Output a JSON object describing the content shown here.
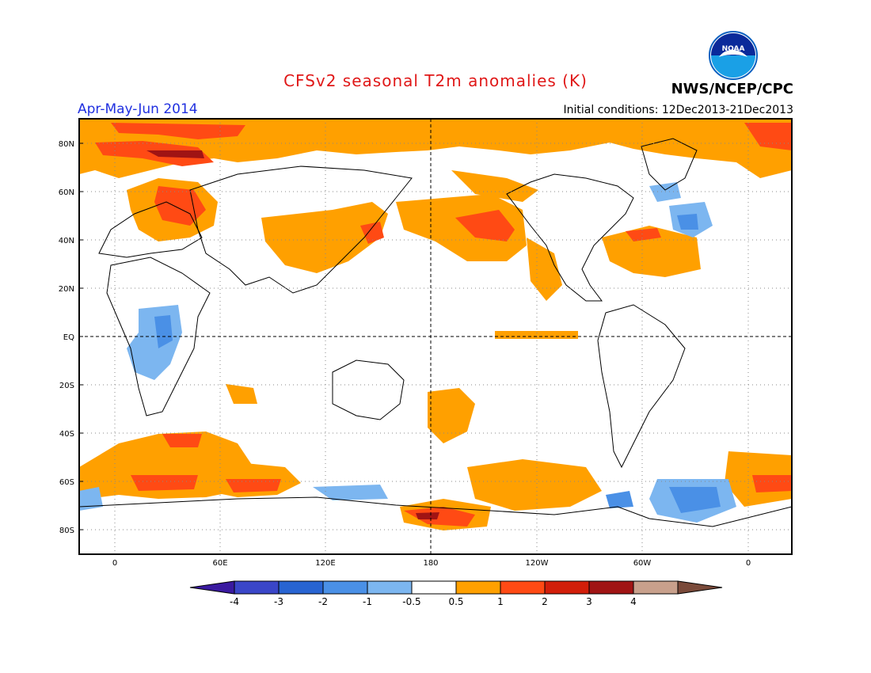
{
  "header": {
    "title": "CFSv2 seasonal T2m anomalies (K)",
    "period": "Apr-May-Jun 2014",
    "initial_conditions": "Initial conditions: 12Dec2013-21Dec2013",
    "agency": "NWS/NCEP/CPC",
    "logo_text": "NOAA"
  },
  "axes": {
    "lat_labels": [
      "80N",
      "60N",
      "40N",
      "20N",
      "EQ",
      "20S",
      "40S",
      "60S",
      "80S"
    ],
    "lon_labels": [
      "0",
      "60E",
      "120E",
      "180",
      "120W",
      "60W",
      "0"
    ]
  },
  "colorbar": {
    "levels": [
      "-4",
      "-3",
      "-2",
      "-1",
      "-0.5",
      "0.5",
      "1",
      "2",
      "3",
      "4"
    ],
    "colors": [
      "#3a1aa0",
      "#3a46c8",
      "#2864d2",
      "#4a90e6",
      "#7cb6f0",
      "#ffffff",
      "#ffa000",
      "#ff4a14",
      "#d21e0a",
      "#a01414",
      "#c8a08c",
      "#7a4a3a"
    ]
  },
  "palette": {
    "warm_weak": "#ffa000",
    "warm_mod": "#ff4a14",
    "warm_strong": "#d21e0a",
    "warm_extreme": "#a01414",
    "cool_weak": "#7cb6f0",
    "cool_mod": "#4a90e6",
    "cool_strong": "#2864d2"
  }
}
